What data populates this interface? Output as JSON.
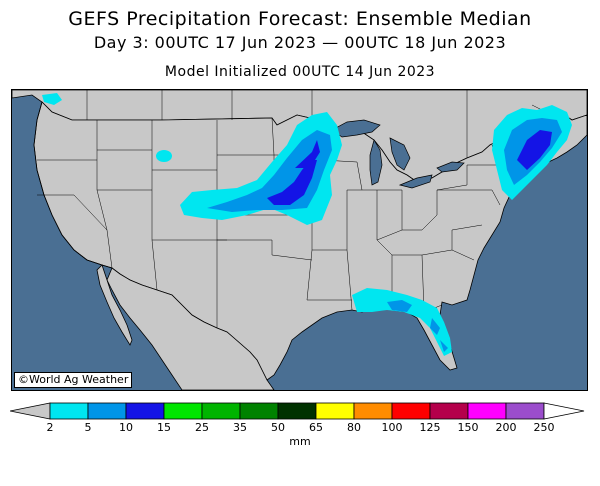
{
  "header": {
    "title": "GEFS Precipitation Forecast: Ensemble Median",
    "valid_period": "Day 3: 00UTC 17 Jun 2023 — 00UTC 18 Jun 2023",
    "init": "Model Initialized 00UTC 14 Jun 2023"
  },
  "map": {
    "credit": "©World Ag Weather",
    "ocean_color": "#4a6f93",
    "land_color": "#c8c8c8",
    "precip_areas": [
      {
        "region": "Central Plains / Upper Midwest",
        "max_level": "15"
      },
      {
        "region": "New England / Northeast",
        "max_level": "15"
      },
      {
        "region": "Gulf Coast / Florida",
        "max_level": "10"
      }
    ]
  },
  "colorbar": {
    "unit": "mm",
    "tick_labels": [
      "2",
      "5",
      "10",
      "15",
      "25",
      "35",
      "50",
      "65",
      "80",
      "100",
      "125",
      "150",
      "200",
      "250"
    ],
    "colors": [
      "#00e6f0",
      "#0095e8",
      "#1414e6",
      "#00e600",
      "#00b400",
      "#008200",
      "#003200",
      "#ffff00",
      "#ff8c00",
      "#ff0000",
      "#b4004b",
      "#ff00ff",
      "#9b4dcc"
    ],
    "under_color": "#c8c8c8",
    "over_color": "#ffffff"
  }
}
